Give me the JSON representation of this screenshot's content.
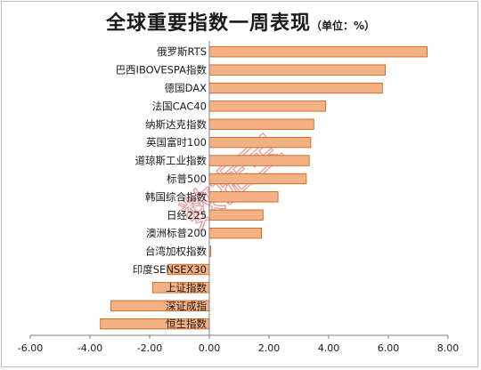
{
  "title": "全球重要指数一周表现",
  "unit_note": "（单位：%）",
  "watermark": "数据宝",
  "colors": {
    "bar_fill": "#f4b183",
    "bar_stroke": "#c55a11",
    "axis": "#7f7f7f"
  },
  "chart_data": {
    "type": "bar",
    "orientation": "horizontal",
    "title": "全球重要指数一周表现",
    "unit": "%",
    "categories": [
      "俄罗斯RTS",
      "巴西IBOVESPA指数",
      "德国DAX",
      "法国CAC40",
      "纳斯达克指数",
      "英国富时100",
      "道琼斯工业指数",
      "标普500",
      "韩国综合指数",
      "日经225",
      "澳洲标普200",
      "台湾加权指数",
      "印度SENSEX30",
      "上证指数",
      "深证成指",
      "恒生指数"
    ],
    "values": [
      7.3,
      5.9,
      5.8,
      3.9,
      3.5,
      3.4,
      3.35,
      3.25,
      2.3,
      1.8,
      1.75,
      0.05,
      -1.4,
      -1.9,
      -3.3,
      -3.65
    ],
    "xlim": [
      -6.0,
      8.0
    ],
    "ticks": [
      "-6.00",
      "-4.00",
      "-2.00",
      "0.00",
      "2.00",
      "4.00",
      "6.00",
      "8.00"
    ],
    "tick_values": [
      -6,
      -4,
      -2,
      0,
      2,
      4,
      6,
      8
    ],
    "grid": false,
    "legend": "none"
  }
}
